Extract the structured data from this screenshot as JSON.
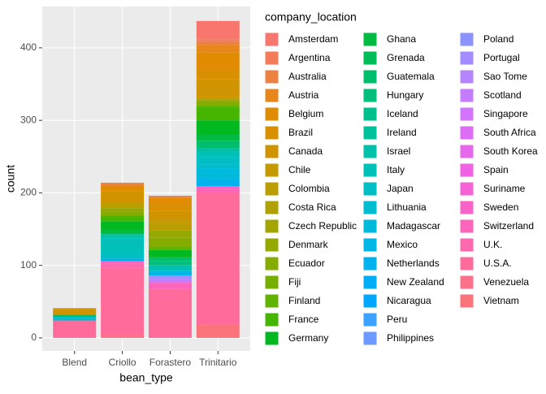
{
  "chart_data": {
    "type": "bar",
    "stacked": true,
    "x_label": "bean_type",
    "y_label": "count",
    "legend_title": "company_location",
    "categories": [
      "Blend",
      "Criollo",
      "Forastero",
      "Trinitario"
    ],
    "ylim": [
      -18,
      457
    ],
    "yticks": [
      0,
      100,
      200,
      300,
      400
    ],
    "grid": true,
    "legend": "right",
    "series": [
      {
        "name": "Amsterdam",
        "color": "#F8766D",
        "values": [
          0,
          0,
          0,
          25
        ]
      },
      {
        "name": "Argentina",
        "color": "#F37B59",
        "values": [
          0,
          0,
          0,
          3
        ]
      },
      {
        "name": "Australia",
        "color": "#ED8141",
        "values": [
          0,
          4,
          3,
          5
        ]
      },
      {
        "name": "Austria",
        "color": "#E7861B",
        "values": [
          0,
          0,
          0,
          10
        ]
      },
      {
        "name": "Belgium",
        "color": "#E08B00",
        "values": [
          0,
          8,
          10,
          25
        ]
      },
      {
        "name": "Brazil",
        "color": "#D89000",
        "values": [
          0,
          0,
          8,
          12
        ]
      },
      {
        "name": "Canada",
        "color": "#CF9400",
        "values": [
          9,
          15,
          12,
          25
        ]
      },
      {
        "name": "Chile",
        "color": "#C59900",
        "values": [
          0,
          0,
          5,
          3
        ]
      },
      {
        "name": "Colombia",
        "color": "#BB9D00",
        "values": [
          0,
          8,
          10,
          0
        ]
      },
      {
        "name": "Costa Rica",
        "color": "#AFA100",
        "values": [
          0,
          0,
          0,
          0
        ]
      },
      {
        "name": "Czech Republic",
        "color": "#A3A500",
        "values": [
          0,
          0,
          0,
          0
        ]
      },
      {
        "name": "Denmark",
        "color": "#96A900",
        "values": [
          0,
          5,
          10,
          3
        ]
      },
      {
        "name": "Ecuador",
        "color": "#87AC00",
        "values": [
          0,
          5,
          12,
          5
        ]
      },
      {
        "name": "Fiji",
        "color": "#76AF00",
        "values": [
          0,
          0,
          0,
          0
        ]
      },
      {
        "name": "Finland",
        "color": "#62B200",
        "values": [
          0,
          0,
          5,
          3
        ]
      },
      {
        "name": "France",
        "color": "#46B500",
        "values": [
          0,
          8,
          0,
          18
        ]
      },
      {
        "name": "Germany",
        "color": "#00B81F",
        "values": [
          0,
          12,
          10,
          20
        ]
      },
      {
        "name": "Ghana",
        "color": "#00BA42",
        "values": [
          0,
          6,
          0,
          8
        ]
      },
      {
        "name": "Grenada",
        "color": "#00BC59",
        "values": [
          0,
          0,
          0,
          0
        ]
      },
      {
        "name": "Guatemala",
        "color": "#00BE6C",
        "values": [
          3,
          0,
          5,
          10
        ]
      },
      {
        "name": "Hungary",
        "color": "#00BF7D",
        "values": [
          0,
          0,
          6,
          0
        ]
      },
      {
        "name": "Iceland",
        "color": "#00C08D",
        "values": [
          0,
          0,
          0,
          0
        ]
      },
      {
        "name": "Ireland",
        "color": "#00C19C",
        "values": [
          0,
          0,
          0,
          5
        ]
      },
      {
        "name": "Israel",
        "color": "#00C1AA",
        "values": [
          0,
          6,
          0,
          0
        ]
      },
      {
        "name": "Italy",
        "color": "#00C0B8",
        "values": [
          0,
          20,
          8,
          8
        ]
      },
      {
        "name": "Japan",
        "color": "#00BFC4",
        "values": [
          0,
          8,
          0,
          10
        ]
      },
      {
        "name": "Lithuania",
        "color": "#00BDD0",
        "values": [
          5,
          0,
          0,
          5
        ]
      },
      {
        "name": "Madagascar",
        "color": "#00BADB",
        "values": [
          0,
          0,
          0,
          15
        ]
      },
      {
        "name": "Mexico",
        "color": "#00B6E5",
        "values": [
          0,
          0,
          6,
          0
        ]
      },
      {
        "name": "Netherlands",
        "color": "#00B2EE",
        "values": [
          0,
          0,
          0,
          10
        ]
      },
      {
        "name": "New Zealand",
        "color": "#00ADF6",
        "values": [
          0,
          3,
          0,
          0
        ]
      },
      {
        "name": "Nicaragua",
        "color": "#00A7FD",
        "values": [
          0,
          0,
          0,
          0
        ]
      },
      {
        "name": "Peru",
        "color": "#3DA1FF",
        "values": [
          0,
          0,
          0,
          0
        ]
      },
      {
        "name": "Philippines",
        "color": "#6C9AFF",
        "values": [
          0,
          0,
          0,
          0
        ]
      },
      {
        "name": "Poland",
        "color": "#8B93FF",
        "values": [
          0,
          0,
          0,
          0
        ]
      },
      {
        "name": "Portugal",
        "color": "#A38CFF",
        "values": [
          0,
          0,
          5,
          0
        ]
      },
      {
        "name": "Sao Tome",
        "color": "#B584FF",
        "values": [
          0,
          0,
          0,
          0
        ]
      },
      {
        "name": "Scotland",
        "color": "#C57CFF",
        "values": [
          0,
          0,
          5,
          0
        ]
      },
      {
        "name": "Singapore",
        "color": "#D274FD",
        "values": [
          0,
          0,
          0,
          0
        ]
      },
      {
        "name": "South Africa",
        "color": "#DD6DF5",
        "values": [
          0,
          0,
          0,
          0
        ]
      },
      {
        "name": "South Korea",
        "color": "#E767EC",
        "values": [
          0,
          0,
          0,
          0
        ]
      },
      {
        "name": "Spain",
        "color": "#EF63E2",
        "values": [
          0,
          0,
          0,
          0
        ]
      },
      {
        "name": "Suriname",
        "color": "#F563D6",
        "values": [
          0,
          0,
          0,
          0
        ]
      },
      {
        "name": "Sweden",
        "color": "#F963C9",
        "values": [
          0,
          0,
          0,
          3
        ]
      },
      {
        "name": "Switzerland",
        "color": "#FC65BB",
        "values": [
          0,
          4,
          8,
          5
        ]
      },
      {
        "name": "U.K.",
        "color": "#FE68AC",
        "values": [
          0,
          5,
          0,
          0
        ]
      },
      {
        "name": "U.S.A.",
        "color": "#FF6C9C",
        "values": [
          24,
          92,
          68,
          183
        ]
      },
      {
        "name": "Venezuela",
        "color": "#FD718B",
        "values": [
          0,
          5,
          0,
          0
        ]
      },
      {
        "name": "Vietnam",
        "color": "#FB747B",
        "values": [
          0,
          0,
          0,
          18
        ]
      }
    ]
  }
}
